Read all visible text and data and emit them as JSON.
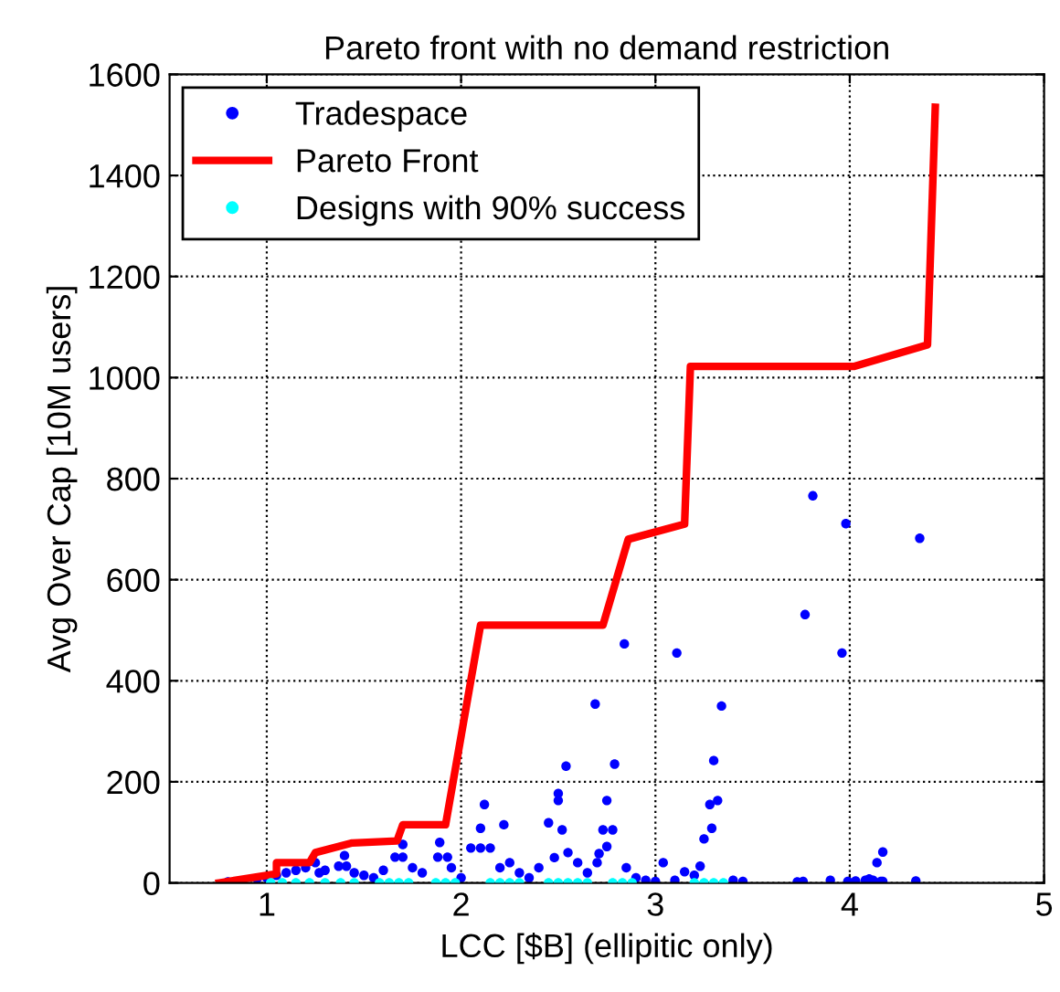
{
  "chart_data": {
    "type": "scatter",
    "title": "Pareto front with no demand restriction",
    "xlabel": "LCC [$B] (ellipitic only)",
    "ylabel": "Avg Over Cap [10M users]",
    "xlim": [
      0.5,
      5
    ],
    "xticks": [
      1,
      2,
      3,
      4,
      5
    ],
    "ylim": [
      0,
      1600
    ],
    "yticks": [
      0,
      200,
      400,
      600,
      800,
      1000,
      1200,
      1400,
      1600
    ],
    "grid": true,
    "legend": "top left",
    "series": [
      {
        "name": "Tradespace",
        "marker": "circle",
        "color": "#0000ff",
        "x": [
          0.8,
          0.95,
          1.0,
          1.05,
          1.1,
          1.15,
          1.2,
          1.25,
          1.27,
          1.3,
          1.37,
          1.4,
          1.41,
          1.45,
          1.5,
          1.55,
          1.6,
          1.66,
          1.7,
          1.7,
          1.75,
          1.8,
          1.88,
          1.89,
          1.93,
          1.95,
          2.0,
          2.05,
          2.1,
          2.1,
          2.12,
          2.15,
          2.2,
          2.22,
          2.25,
          2.3,
          2.35,
          2.4,
          2.45,
          2.48,
          2.5,
          2.5,
          2.52,
          2.54,
          2.55,
          2.6,
          2.65,
          2.69,
          2.7,
          2.71,
          2.73,
          2.75,
          2.75,
          2.78,
          2.79,
          2.84,
          2.85,
          2.9,
          2.95,
          3.0,
          3.04,
          3.1,
          3.11,
          3.15,
          3.2,
          3.23,
          3.25,
          3.28,
          3.29,
          3.3,
          3.32,
          3.34,
          3.4,
          3.45,
          3.73,
          3.76,
          3.77,
          3.81,
          3.9,
          3.96,
          3.98,
          3.99,
          4.03,
          4.08,
          4.1,
          4.12,
          4.14,
          4.16,
          4.17,
          4.17,
          4.34,
          4.36
        ],
        "values": [
          2,
          8,
          10,
          15,
          20,
          25,
          30,
          40,
          20,
          25,
          33,
          54,
          33,
          20,
          15,
          10,
          25,
          51,
          76,
          51,
          30,
          20,
          51,
          80,
          51,
          30,
          10,
          69,
          108,
          69,
          155,
          69,
          30,
          115,
          40,
          20,
          10,
          30,
          119,
          50,
          177,
          163,
          105,
          231,
          60,
          40,
          20,
          354,
          40,
          58,
          105,
          72,
          163,
          105,
          235,
          473,
          30,
          10,
          5,
          3,
          40,
          5,
          455,
          22,
          15,
          33,
          87,
          155,
          108,
          242,
          163,
          350,
          5,
          3,
          2,
          3,
          531,
          766,
          5,
          455,
          711,
          3,
          4,
          5,
          8,
          5,
          40,
          3,
          61,
          3,
          4,
          682
        ]
      },
      {
        "name": "Pareto Front",
        "type": "line",
        "line_style": "solid",
        "marker": "none",
        "color": "#ff0000",
        "x": [
          0.755,
          1.05,
          1.05,
          1.22,
          1.25,
          1.44,
          1.67,
          1.7,
          1.92,
          2.1,
          2.73,
          2.86,
          3.15,
          3.18,
          4.02,
          4.4,
          4.44
        ],
        "values": [
          0,
          18,
          40,
          40,
          60,
          79,
          83,
          115,
          115,
          510,
          510,
          680,
          710,
          1022,
          1022,
          1065,
          1535
        ]
      },
      {
        "name": "Designs with 90% success",
        "marker": "circle",
        "color": "#00ffff",
        "x": [
          1.02,
          1.08,
          1.15,
          1.22,
          1.3,
          1.38,
          1.45,
          1.58,
          1.63,
          1.68,
          1.73,
          1.87,
          1.92,
          1.97,
          2.15,
          2.2,
          2.25,
          2.3,
          2.45,
          2.5,
          2.55,
          2.6,
          2.65,
          2.78,
          2.83,
          2.88,
          3.2,
          3.25,
          3.3,
          3.35
        ],
        "values": [
          0,
          0,
          0,
          0,
          0,
          0,
          0,
          0,
          0,
          0,
          0,
          0,
          0,
          0,
          0,
          0,
          0,
          0,
          0,
          0,
          0,
          0,
          0,
          0,
          0,
          0,
          0,
          0,
          0,
          0
        ]
      }
    ]
  }
}
